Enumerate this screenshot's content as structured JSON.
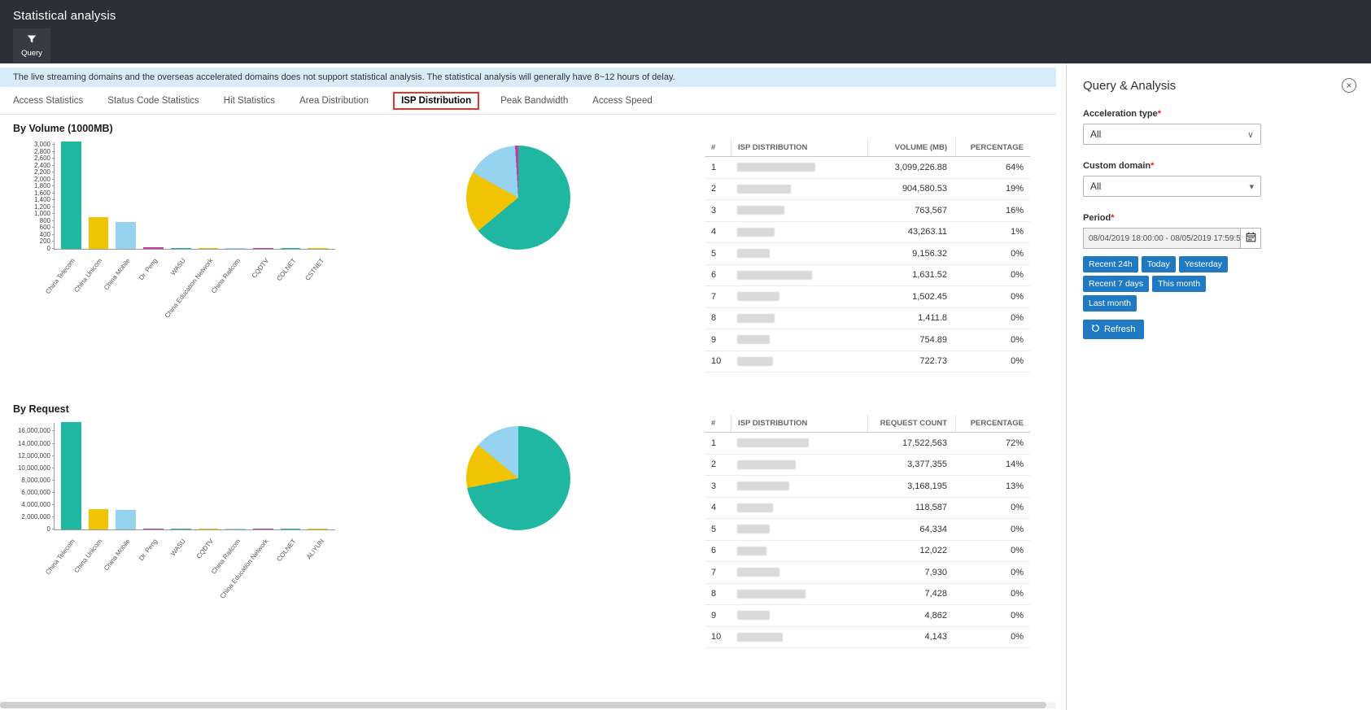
{
  "header": {
    "title": "Statistical analysis"
  },
  "toolbar": {
    "query_label": "Query"
  },
  "notice": "The live streaming domains and the overseas accelerated domains does not support statistical analysis. The statistical analysis will generally have 8~12 hours of delay.",
  "tabs": [
    {
      "label": "Access Statistics",
      "active": false
    },
    {
      "label": "Status Code Statistics",
      "active": false
    },
    {
      "label": "Hit Statistics",
      "active": false
    },
    {
      "label": "Area Distribution",
      "active": false
    },
    {
      "label": "ISP Distribution",
      "active": true
    },
    {
      "label": "Peak Bandwidth",
      "active": false
    },
    {
      "label": "Access Speed",
      "active": false
    }
  ],
  "sections": {
    "volume_title": "By Volume (1000MB)",
    "request_title": "By Request"
  },
  "chart_data": [
    {
      "id": "bar-volume",
      "type": "bar",
      "title": "By Volume (1000MB)",
      "categories": [
        "China Telecom",
        "China Unicom",
        "China Mobile",
        "Dr. Peng",
        "WASU",
        "China Education Network",
        "China Railcom",
        "CQDTV",
        "COLNET",
        "CSTNET"
      ],
      "values": [
        3099.23,
        904.58,
        763.57,
        43.26,
        9.16,
        1.63,
        1.5,
        1.41,
        0.75,
        0.72
      ],
      "ylabel": "Volume (1000MB)",
      "ylim": [
        0,
        3099.23
      ],
      "tick_max": 3000,
      "tick_step": 200,
      "grid": false,
      "colors": [
        "#20b7a2",
        "#f0c402",
        "#95d3ef",
        "#c23ba1",
        "#20b7a2",
        "#f0c402",
        "#95d3ef",
        "#c23ba1",
        "#20b7a2",
        "#f0c402"
      ]
    },
    {
      "id": "pie-volume",
      "type": "pie",
      "title": "By Volume (1000MB) share",
      "slices": [
        {
          "label": "China Telecom",
          "pct": 64,
          "color": "#20b7a2"
        },
        {
          "label": "China Unicom",
          "pct": 19,
          "color": "#f0c402"
        },
        {
          "label": "China Mobile",
          "pct": 16,
          "color": "#95d3ef"
        },
        {
          "label": "Dr. Peng",
          "pct": 1,
          "color": "#c23ba1"
        }
      ]
    },
    {
      "id": "bar-request",
      "type": "bar",
      "title": "By Request",
      "categories": [
        "China Telecom",
        "China Unicom",
        "China Mobile",
        "Dr. Peng",
        "WASU",
        "CQDTV",
        "China Railcom",
        "China Education Network",
        "COLNET",
        "ALIYUN"
      ],
      "values": [
        17522563,
        3377355,
        3168195,
        118587,
        64334,
        12022,
        7930,
        7428,
        4862,
        4143
      ],
      "ylabel": "Request count",
      "ylim": [
        0,
        17522563
      ],
      "tick_max": 16000000,
      "tick_step": 2000000,
      "grid": false,
      "colors": [
        "#20b7a2",
        "#f0c402",
        "#95d3ef",
        "#c23ba1",
        "#20b7a2",
        "#f0c402",
        "#95d3ef",
        "#c23ba1",
        "#20b7a2",
        "#f0c402"
      ]
    },
    {
      "id": "pie-request",
      "type": "pie",
      "title": "By Request share",
      "slices": [
        {
          "label": "China Telecom",
          "pct": 72,
          "color": "#20b7a2"
        },
        {
          "label": "China Unicom",
          "pct": 14,
          "color": "#f0c402"
        },
        {
          "label": "China Mobile",
          "pct": 13,
          "color": "#95d3ef"
        }
      ]
    }
  ],
  "volume_table": {
    "headers": [
      "#",
      "ISP DISTRIBUTION",
      "VOLUME (MB)",
      "PERCENTAGE"
    ],
    "rows": [
      {
        "rank": "1",
        "value": "3,099,226.88",
        "pct": "64%",
        "blob": 96
      },
      {
        "rank": "2",
        "value": "904,580.53",
        "pct": "19%",
        "blob": 66
      },
      {
        "rank": "3",
        "value": "763,567",
        "pct": "16%",
        "blob": 58
      },
      {
        "rank": "4",
        "value": "43,263.11",
        "pct": "1%",
        "blob": 46
      },
      {
        "rank": "5",
        "value": "9,156.32",
        "pct": "0%",
        "blob": 40
      },
      {
        "rank": "6",
        "value": "1,631.52",
        "pct": "0%",
        "blob": 92
      },
      {
        "rank": "7",
        "value": "1,502.45",
        "pct": "0%",
        "blob": 52
      },
      {
        "rank": "8",
        "value": "1,411.8",
        "pct": "0%",
        "blob": 46
      },
      {
        "rank": "9",
        "value": "754.89",
        "pct": "0%",
        "blob": 40
      },
      {
        "rank": "10",
        "value": "722.73",
        "pct": "0%",
        "blob": 44
      }
    ]
  },
  "request_table": {
    "headers": [
      "#",
      "ISP DISTRIBUTION",
      "REQUEST COUNT",
      "PERCENTAGE"
    ],
    "rows": [
      {
        "rank": "1",
        "value": "17,522,563",
        "pct": "72%",
        "blob": 88
      },
      {
        "rank": "2",
        "value": "3,377,355",
        "pct": "14%",
        "blob": 72
      },
      {
        "rank": "3",
        "value": "3,168,195",
        "pct": "13%",
        "blob": 64
      },
      {
        "rank": "4",
        "value": "118,587",
        "pct": "0%",
        "blob": 44
      },
      {
        "rank": "5",
        "value": "64,334",
        "pct": "0%",
        "blob": 40
      },
      {
        "rank": "6",
        "value": "12,022",
        "pct": "0%",
        "blob": 36
      },
      {
        "rank": "7",
        "value": "7,930",
        "pct": "0%",
        "blob": 52
      },
      {
        "rank": "8",
        "value": "7,428",
        "pct": "0%",
        "blob": 84
      },
      {
        "rank": "9",
        "value": "4,862",
        "pct": "0%",
        "blob": 40
      },
      {
        "rank": "10",
        "value": "4,143",
        "pct": "0%",
        "blob": 56
      }
    ]
  },
  "query_panel": {
    "title": "Query & Analysis",
    "acceleration_type": {
      "label": "Acceleration type",
      "required": "*",
      "value": "All"
    },
    "custom_domain": {
      "label": "Custom domain",
      "required": "*",
      "value": "All"
    },
    "period": {
      "label": "Period",
      "required": "*",
      "value": "08/04/2019 18:00:00 - 08/05/2019 17:59:59"
    },
    "quick_ranges": [
      "Recent 24h",
      "Today",
      "Yesterday",
      "Recent 7 days",
      "This month",
      "Last month"
    ],
    "refresh_label": "Refresh"
  },
  "colors": {
    "teal": "#20b7a2",
    "yellow": "#f0c402",
    "light_blue": "#95d3ef",
    "magenta": "#c23ba1",
    "accent_blue": "#2079c3",
    "banner_bg": "#d8ecf8",
    "header_bg": "#2b3038",
    "tab_highlight_red": "#e8322e"
  }
}
